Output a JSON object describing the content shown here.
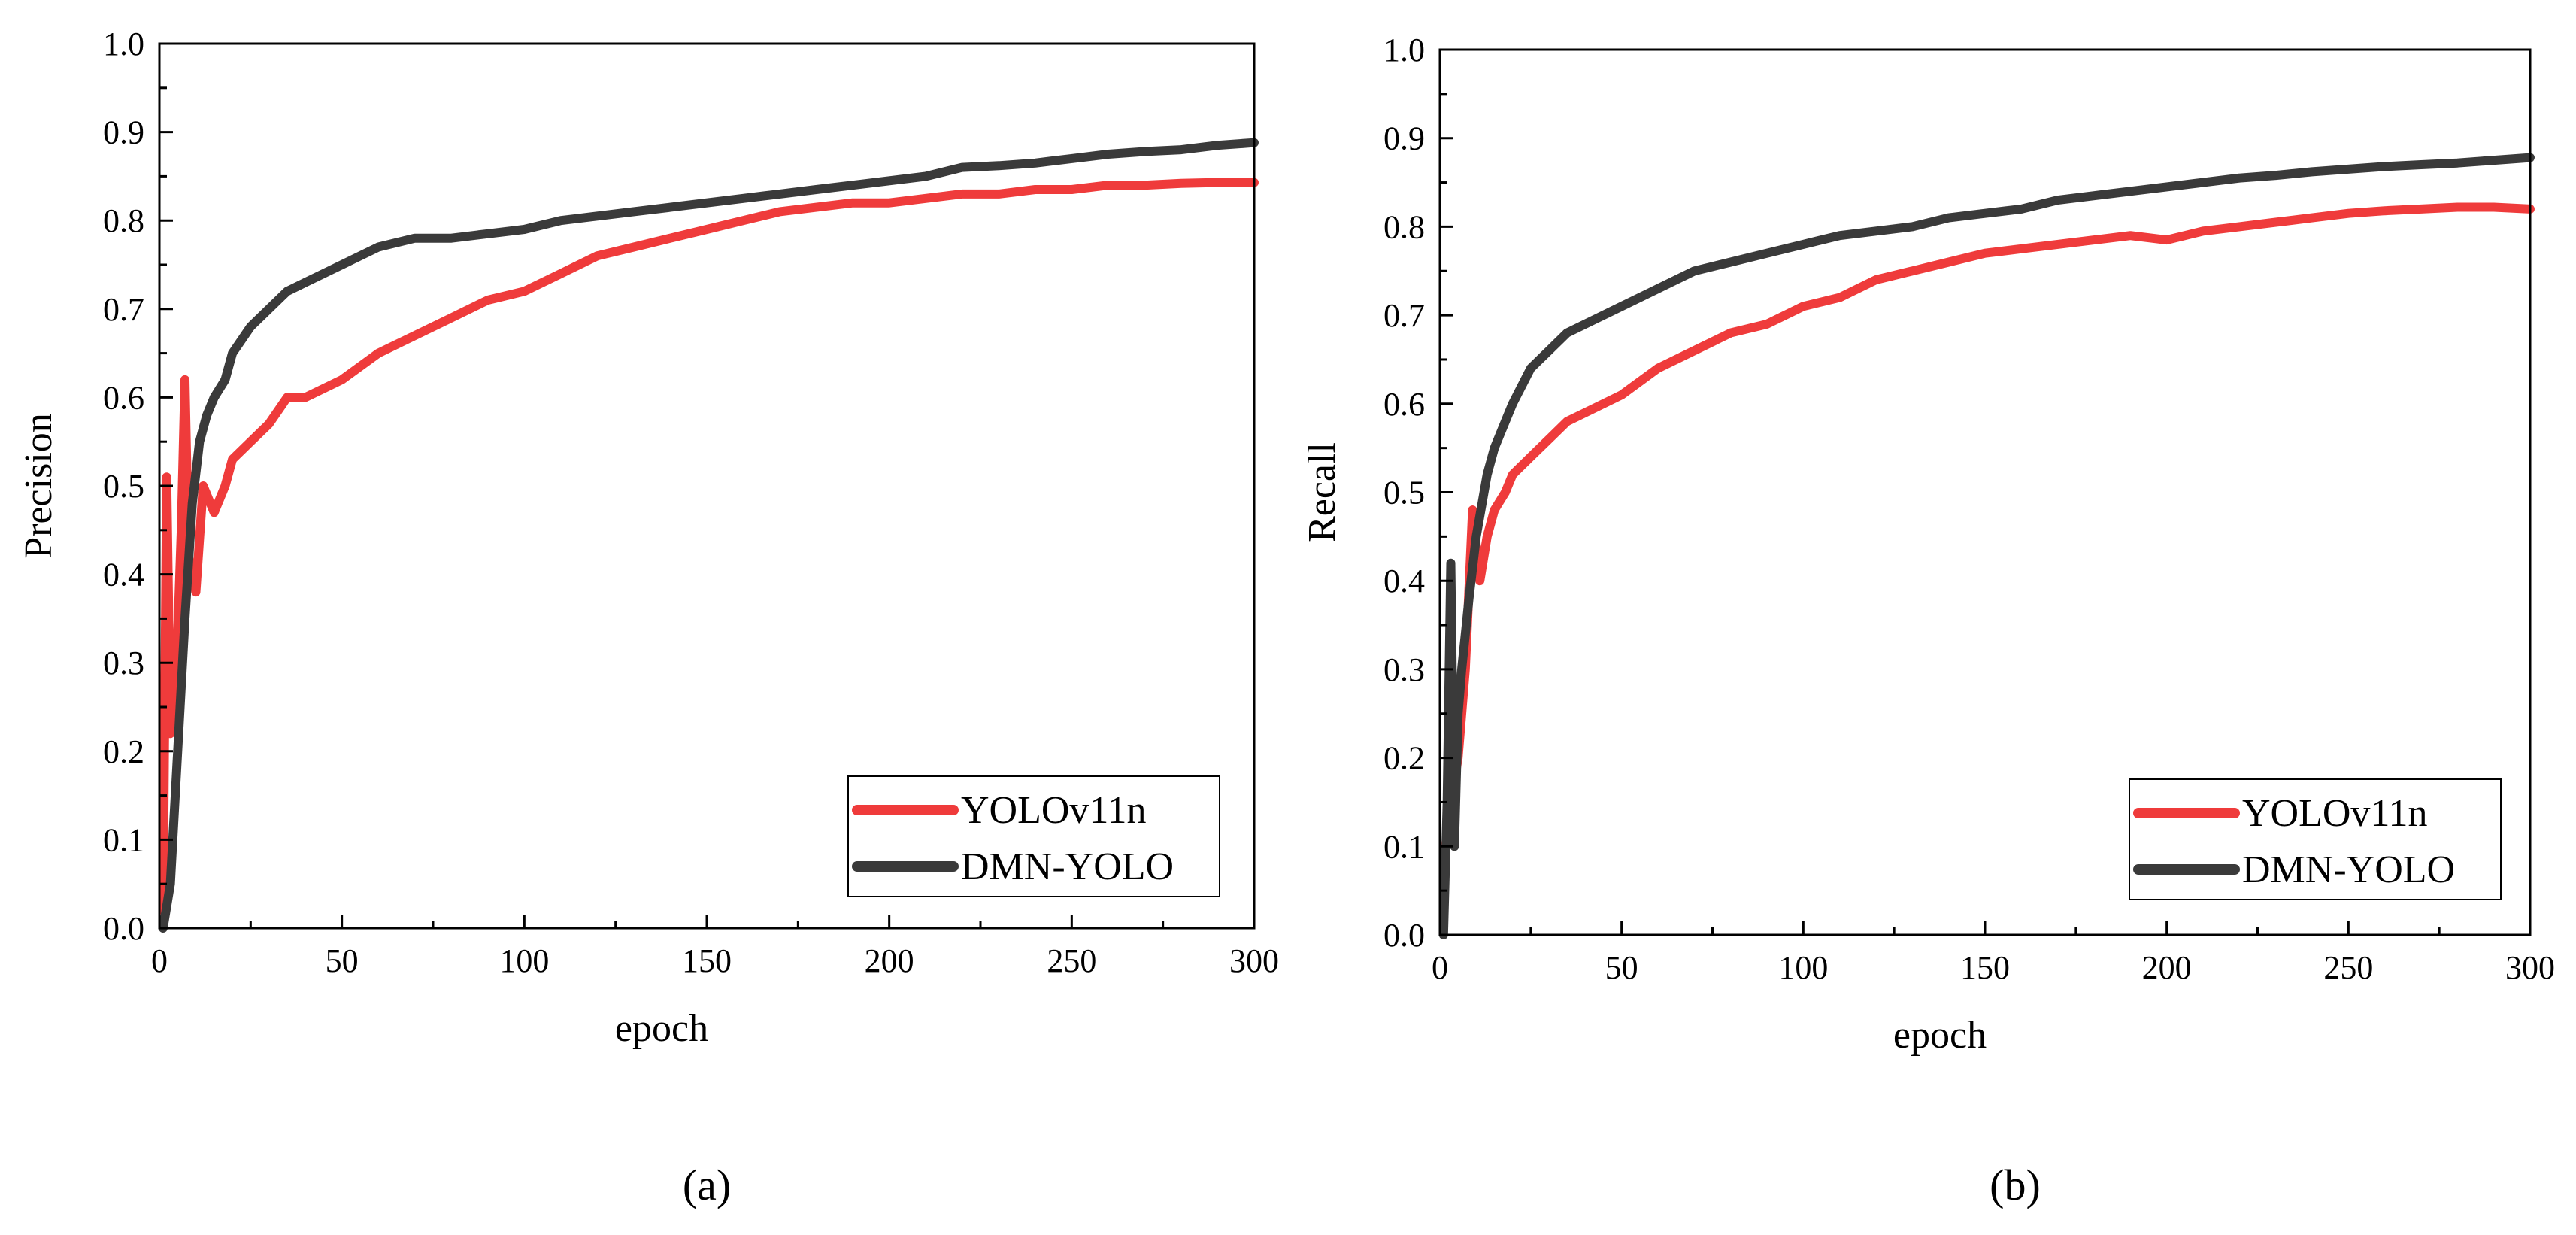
{
  "chart_data": [
    {
      "type": "line",
      "panel": "a",
      "caption": "(a)",
      "xlabel": "epoch",
      "ylabel": "Precision",
      "xlim": [
        0,
        300
      ],
      "ylim": [
        0.0,
        1.0
      ],
      "xticks": [
        "0",
        "50",
        "100",
        "150",
        "200",
        "250",
        "300"
      ],
      "yticks": [
        "0.0",
        "0.1",
        "0.2",
        "0.3",
        "0.4",
        "0.5",
        "0.6",
        "0.7",
        "0.8",
        "0.9",
        "1.0"
      ],
      "legend_position": "bottom-right",
      "series": [
        {
          "name": "YOLOv11n",
          "color": "#ef3b3b",
          "x": [
            1,
            2,
            3,
            4,
            5,
            6,
            7,
            8,
            10,
            12,
            15,
            18,
            20,
            25,
            30,
            35,
            40,
            50,
            60,
            70,
            80,
            90,
            100,
            110,
            120,
            130,
            140,
            150,
            160,
            170,
            180,
            190,
            200,
            210,
            220,
            230,
            240,
            250,
            260,
            270,
            280,
            290,
            300
          ],
          "values": [
            0.02,
            0.51,
            0.22,
            0.25,
            0.33,
            0.45,
            0.62,
            0.42,
            0.38,
            0.5,
            0.47,
            0.5,
            0.53,
            0.55,
            0.57,
            0.6,
            0.6,
            0.62,
            0.65,
            0.67,
            0.69,
            0.71,
            0.72,
            0.74,
            0.76,
            0.77,
            0.78,
            0.79,
            0.8,
            0.81,
            0.815,
            0.82,
            0.82,
            0.825,
            0.83,
            0.83,
            0.835,
            0.835,
            0.84,
            0.84,
            0.842,
            0.843,
            0.843
          ]
        },
        {
          "name": "DMN-YOLO",
          "color": "#3a3a3a",
          "x": [
            1,
            3,
            5,
            7,
            9,
            11,
            13,
            15,
            18,
            20,
            25,
            30,
            35,
            40,
            50,
            60,
            70,
            80,
            90,
            100,
            110,
            120,
            130,
            140,
            150,
            160,
            170,
            180,
            190,
            200,
            210,
            220,
            230,
            240,
            250,
            260,
            270,
            280,
            290,
            300
          ],
          "values": [
            0.0,
            0.05,
            0.2,
            0.35,
            0.48,
            0.55,
            0.58,
            0.6,
            0.62,
            0.65,
            0.68,
            0.7,
            0.72,
            0.73,
            0.75,
            0.77,
            0.78,
            0.78,
            0.785,
            0.79,
            0.8,
            0.805,
            0.81,
            0.815,
            0.82,
            0.825,
            0.83,
            0.835,
            0.84,
            0.845,
            0.85,
            0.86,
            0.862,
            0.865,
            0.87,
            0.875,
            0.878,
            0.88,
            0.885,
            0.888
          ]
        }
      ]
    },
    {
      "type": "line",
      "panel": "b",
      "caption": "(b)",
      "xlabel": "epoch",
      "ylabel": "Recall",
      "xlim": [
        0,
        300
      ],
      "ylim": [
        0.0,
        1.0
      ],
      "xticks": [
        "0",
        "50",
        "100",
        "150",
        "200",
        "250",
        "300"
      ],
      "yticks": [
        "0.0",
        "0.1",
        "0.2",
        "0.3",
        "0.4",
        "0.5",
        "0.6",
        "0.7",
        "0.8",
        "0.9",
        "1.0"
      ],
      "legend_position": "bottom-right",
      "series": [
        {
          "name": "YOLOv11n",
          "color": "#ef3b3b",
          "x": [
            1,
            3,
            5,
            7,
            9,
            11,
            13,
            15,
            18,
            20,
            25,
            30,
            35,
            40,
            50,
            60,
            70,
            80,
            90,
            100,
            110,
            120,
            130,
            140,
            150,
            160,
            170,
            180,
            190,
            200,
            210,
            220,
            230,
            240,
            250,
            260,
            270,
            280,
            290,
            300
          ],
          "values": [
            0.08,
            0.15,
            0.2,
            0.3,
            0.48,
            0.4,
            0.45,
            0.48,
            0.5,
            0.52,
            0.54,
            0.56,
            0.58,
            0.59,
            0.61,
            0.64,
            0.66,
            0.68,
            0.69,
            0.71,
            0.72,
            0.74,
            0.75,
            0.76,
            0.77,
            0.775,
            0.78,
            0.785,
            0.79,
            0.785,
            0.795,
            0.8,
            0.805,
            0.81,
            0.815,
            0.818,
            0.82,
            0.822,
            0.822,
            0.82
          ]
        },
        {
          "name": "DMN-YOLO",
          "color": "#3a3a3a",
          "x": [
            1,
            2,
            3,
            4,
            5,
            6,
            8,
            10,
            13,
            15,
            18,
            20,
            25,
            30,
            35,
            40,
            50,
            60,
            70,
            80,
            90,
            100,
            110,
            120,
            130,
            140,
            150,
            160,
            170,
            180,
            190,
            200,
            210,
            220,
            230,
            240,
            250,
            260,
            270,
            280,
            290,
            300
          ],
          "values": [
            0.0,
            0.15,
            0.42,
            0.1,
            0.25,
            0.3,
            0.38,
            0.45,
            0.52,
            0.55,
            0.58,
            0.6,
            0.64,
            0.66,
            0.68,
            0.69,
            0.71,
            0.73,
            0.75,
            0.76,
            0.77,
            0.78,
            0.79,
            0.795,
            0.8,
            0.81,
            0.815,
            0.82,
            0.83,
            0.835,
            0.84,
            0.845,
            0.85,
            0.855,
            0.858,
            0.862,
            0.865,
            0.868,
            0.87,
            0.872,
            0.875,
            0.878
          ]
        }
      ]
    }
  ]
}
